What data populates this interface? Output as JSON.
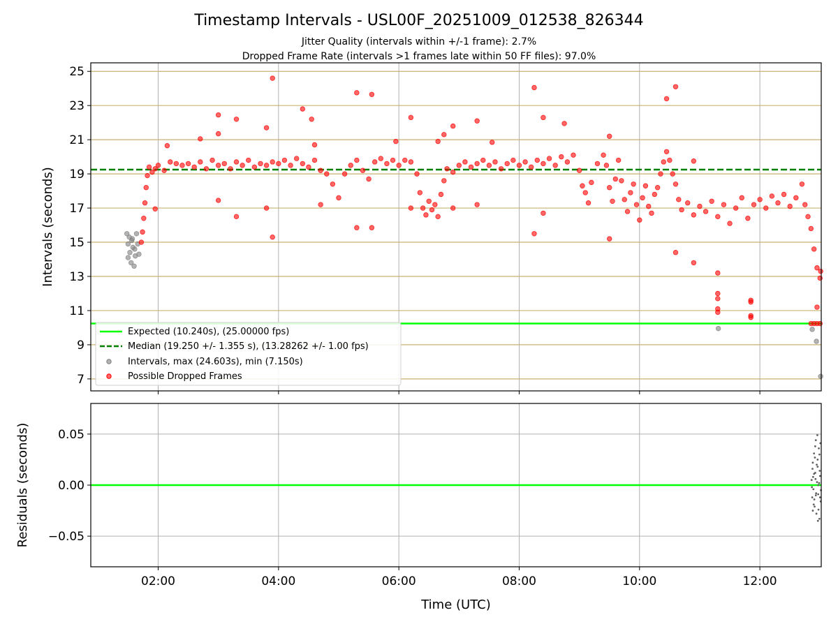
{
  "title": "Timestamp Intervals - USL00F_20251009_012538_826344",
  "subtitle_jitter": "Jitter Quality (intervals within +/-1 frame): 2.7%",
  "subtitle_dropped": "Dropped Frame Rate (intervals >1 frames late within 50 FF files): 97.0%",
  "colors": {
    "expected": "#00ff00",
    "median": "#008000",
    "intervals": "#808080",
    "dropped": "#ff0000",
    "hgrid": "#c8b070",
    "vgrid": "#b0b0b0"
  },
  "legend": {
    "expected": "Expected (10.240s), (25.00000 fps)",
    "median": "Median (19.250 +/- 1.355 s), (13.28262 +/- 1.00 fps)",
    "intervals": "Intervals, max (24.603s), min (7.150s)",
    "dropped": "Possible Dropped Frames"
  },
  "chart_data": [
    {
      "type": "scatter",
      "panel": "top",
      "ylabel": "Intervals (seconds)",
      "xlabel": "",
      "x_unit": "hours UTC",
      "xlim": [
        0.88,
        13.02
      ],
      "ylim": [
        6.3,
        25.5
      ],
      "yticks": [
        7,
        9,
        11,
        13,
        15,
        17,
        19,
        21,
        23,
        25
      ],
      "ytick_labels": [
        "7",
        "9",
        "11",
        "13",
        "15",
        "17",
        "19",
        "21",
        "23",
        "25"
      ],
      "expected_value": 10.24,
      "median_value": 19.25,
      "legend_position": "lower-left",
      "series": [
        {
          "name": "Intervals",
          "points": [
            [
              1.48,
              15.5
            ],
            [
              1.5,
              14.9
            ],
            [
              1.52,
              15.3
            ],
            [
              1.53,
              14.4
            ],
            [
              1.55,
              13.8
            ],
            [
              1.57,
              15.2
            ],
            [
              1.58,
              14.7
            ],
            [
              1.6,
              13.6
            ],
            [
              1.62,
              14.2
            ],
            [
              1.64,
              15.5
            ],
            [
              1.66,
              14.9
            ],
            [
              1.68,
              14.3
            ],
            [
              1.5,
              14.1
            ],
            [
              1.56,
              15.1
            ],
            [
              1.61,
              14.6
            ],
            [
              11.31,
              9.95
            ],
            [
              12.87,
              9.9
            ],
            [
              12.94,
              9.2
            ],
            [
              13.01,
              7.15
            ]
          ]
        },
        {
          "name": "Possible Dropped Frames",
          "points": [
            [
              1.72,
              15.0
            ],
            [
              1.74,
              15.6
            ],
            [
              1.76,
              16.4
            ],
            [
              1.78,
              17.3
            ],
            [
              1.8,
              18.2
            ],
            [
              1.82,
              18.9
            ],
            [
              1.85,
              19.4
            ],
            [
              1.9,
              19.1
            ],
            [
              1.95,
              19.3
            ],
            [
              2.0,
              19.5
            ],
            [
              2.1,
              19.2
            ],
            [
              2.2,
              19.7
            ],
            [
              2.3,
              19.6
            ],
            [
              2.4,
              19.5
            ],
            [
              2.5,
              19.6
            ],
            [
              2.6,
              19.4
            ],
            [
              2.7,
              19.7
            ],
            [
              2.8,
              19.3
            ],
            [
              2.9,
              19.8
            ],
            [
              3.0,
              19.5
            ],
            [
              3.1,
              19.6
            ],
            [
              3.2,
              19.3
            ],
            [
              3.3,
              19.7
            ],
            [
              3.4,
              19.5
            ],
            [
              3.5,
              19.8
            ],
            [
              3.6,
              19.4
            ],
            [
              3.7,
              19.6
            ],
            [
              3.8,
              19.5
            ],
            [
              3.9,
              19.7
            ],
            [
              4.0,
              19.6
            ],
            [
              4.1,
              19.8
            ],
            [
              4.2,
              19.5
            ],
            [
              4.3,
              19.9
            ],
            [
              4.4,
              19.6
            ],
            [
              4.5,
              19.4
            ],
            [
              4.6,
              19.8
            ],
            [
              4.7,
              19.2
            ],
            [
              4.8,
              19.0
            ],
            [
              4.9,
              18.4
            ],
            [
              5.0,
              17.6
            ],
            [
              5.1,
              19.0
            ],
            [
              5.2,
              19.5
            ],
            [
              5.3,
              19.8
            ],
            [
              5.4,
              19.2
            ],
            [
              5.5,
              18.7
            ],
            [
              5.6,
              19.7
            ],
            [
              5.7,
              19.9
            ],
            [
              5.8,
              19.6
            ],
            [
              5.9,
              19.8
            ],
            [
              6.0,
              19.5
            ],
            [
              6.1,
              19.8
            ],
            [
              6.2,
              19.7
            ],
            [
              6.3,
              19.0
            ],
            [
              6.35,
              17.9
            ],
            [
              6.4,
              17.0
            ],
            [
              6.45,
              16.6
            ],
            [
              6.5,
              17.4
            ],
            [
              6.55,
              16.9
            ],
            [
              6.6,
              17.2
            ],
            [
              6.65,
              16.5
            ],
            [
              6.7,
              17.8
            ],
            [
              6.75,
              18.6
            ],
            [
              6.8,
              19.3
            ],
            [
              6.9,
              19.1
            ],
            [
              7.0,
              19.5
            ],
            [
              7.1,
              19.7
            ],
            [
              7.2,
              19.4
            ],
            [
              7.3,
              19.6
            ],
            [
              7.4,
              19.8
            ],
            [
              7.5,
              19.5
            ],
            [
              7.6,
              19.7
            ],
            [
              7.7,
              19.3
            ],
            [
              7.8,
              19.6
            ],
            [
              7.9,
              19.8
            ],
            [
              8.0,
              19.5
            ],
            [
              8.1,
              19.7
            ],
            [
              8.2,
              19.4
            ],
            [
              8.3,
              19.8
            ],
            [
              8.4,
              19.6
            ],
            [
              8.5,
              19.9
            ],
            [
              8.6,
              19.5
            ],
            [
              8.7,
              20.0
            ],
            [
              8.8,
              19.7
            ],
            [
              8.9,
              20.1
            ],
            [
              9.0,
              19.2
            ],
            [
              9.05,
              18.3
            ],
            [
              9.1,
              17.9
            ],
            [
              9.15,
              17.3
            ],
            [
              9.2,
              18.5
            ],
            [
              9.3,
              19.6
            ],
            [
              9.4,
              20.1
            ],
            [
              9.45,
              19.5
            ],
            [
              9.5,
              18.2
            ],
            [
              9.55,
              17.4
            ],
            [
              9.6,
              18.7
            ],
            [
              9.65,
              19.8
            ],
            [
              9.7,
              18.6
            ],
            [
              9.75,
              17.5
            ],
            [
              9.8,
              16.8
            ],
            [
              9.85,
              17.9
            ],
            [
              9.9,
              18.4
            ],
            [
              9.95,
              17.2
            ],
            [
              10.0,
              16.3
            ],
            [
              10.05,
              17.6
            ],
            [
              10.1,
              18.3
            ],
            [
              10.15,
              17.1
            ],
            [
              10.2,
              16.7
            ],
            [
              10.25,
              17.8
            ],
            [
              10.3,
              18.2
            ],
            [
              10.35,
              19.0
            ],
            [
              10.4,
              19.7
            ],
            [
              10.45,
              20.3
            ],
            [
              10.5,
              19.8
            ],
            [
              10.55,
              19.0
            ],
            [
              10.6,
              18.4
            ],
            [
              10.65,
              17.5
            ],
            [
              10.7,
              16.9
            ],
            [
              10.8,
              17.3
            ],
            [
              10.9,
              16.6
            ],
            [
              11.0,
              17.1
            ],
            [
              11.1,
              16.8
            ],
            [
              11.2,
              17.4
            ],
            [
              11.3,
              16.5
            ],
            [
              11.4,
              17.2
            ],
            [
              11.5,
              16.1
            ],
            [
              11.6,
              17.0
            ],
            [
              11.7,
              17.6
            ],
            [
              11.8,
              16.4
            ],
            [
              11.9,
              17.2
            ],
            [
              12.0,
              17.5
            ],
            [
              12.1,
              17.0
            ],
            [
              12.2,
              17.7
            ],
            [
              12.3,
              17.3
            ],
            [
              12.4,
              17.8
            ],
            [
              12.5,
              17.1
            ],
            [
              12.6,
              17.6
            ],
            [
              12.7,
              18.4
            ],
            [
              12.75,
              17.2
            ],
            [
              12.8,
              16.5
            ],
            [
              12.85,
              15.8
            ],
            [
              12.9,
              14.6
            ],
            [
              12.95,
              13.5
            ],
            [
              1.95,
              16.95
            ],
            [
              2.15,
              20.65
            ],
            [
              2.7,
              21.05
            ],
            [
              3.0,
              22.45
            ],
            [
              3.0,
              21.35
            ],
            [
              3.0,
              17.45
            ],
            [
              3.3,
              22.2
            ],
            [
              3.3,
              16.5
            ],
            [
              3.8,
              21.7
            ],
            [
              3.8,
              17.0
            ],
            [
              3.9,
              24.6
            ],
            [
              3.9,
              15.3
            ],
            [
              4.4,
              22.8
            ],
            [
              4.55,
              22.2
            ],
            [
              4.6,
              20.7
            ],
            [
              4.7,
              17.2
            ],
            [
              5.3,
              23.75
            ],
            [
              5.3,
              15.85
            ],
            [
              5.55,
              23.65
            ],
            [
              5.55,
              15.85
            ],
            [
              5.95,
              20.9
            ],
            [
              6.2,
              22.3
            ],
            [
              6.2,
              17.0
            ],
            [
              6.65,
              20.9
            ],
            [
              6.75,
              21.3
            ],
            [
              6.9,
              21.8
            ],
            [
              6.9,
              17.0
            ],
            [
              7.3,
              22.1
            ],
            [
              7.3,
              17.2
            ],
            [
              7.55,
              20.85
            ],
            [
              8.25,
              24.05
            ],
            [
              8.25,
              15.5
            ],
            [
              8.4,
              22.3
            ],
            [
              8.4,
              16.7
            ],
            [
              8.75,
              21.95
            ],
            [
              9.5,
              21.2
            ],
            [
              9.5,
              15.2
            ],
            [
              10.45,
              23.4
            ],
            [
              10.6,
              24.1
            ],
            [
              10.6,
              14.4
            ],
            [
              10.9,
              19.75
            ],
            [
              10.9,
              13.8
            ],
            [
              11.3,
              13.2
            ],
            [
              11.3,
              12.0
            ],
            [
              11.3,
              11.7
            ],
            [
              11.3,
              11.1
            ],
            [
              11.3,
              10.9
            ],
            [
              11.85,
              11.6
            ],
            [
              11.85,
              11.5
            ],
            [
              11.85,
              10.7
            ],
            [
              11.85,
              10.6
            ],
            [
              12.85,
              10.24
            ],
            [
              12.9,
              10.24
            ],
            [
              12.95,
              10.24
            ],
            [
              13.0,
              10.24
            ],
            [
              13.01,
              13.3
            ],
            [
              13.0,
              12.9
            ],
            [
              12.95,
              11.2
            ]
          ]
        }
      ]
    },
    {
      "type": "scatter",
      "panel": "bottom",
      "xlabel": "Time (UTC)",
      "ylabel": "Residuals (seconds)",
      "xlim": [
        0.88,
        13.02
      ],
      "ylim": [
        -0.08,
        0.08
      ],
      "yticks": [
        -0.05,
        0.0,
        0.05
      ],
      "ytick_labels": [
        "−0.05",
        "0.00",
        "0.05"
      ],
      "xticks": [
        2,
        4,
        6,
        8,
        10,
        12
      ],
      "xtick_labels": [
        "02:00",
        "04:00",
        "06:00",
        "08:00",
        "10:00",
        "12:00"
      ],
      "zero_line": 0.0,
      "series": [
        {
          "name": "Residuals",
          "points": [
            [
              12.86,
              0.005
            ],
            [
              12.87,
              -0.012
            ],
            [
              12.88,
              0.022
            ],
            [
              12.89,
              -0.004
            ],
            [
              12.9,
              0.031
            ],
            [
              12.91,
              -0.021
            ],
            [
              12.92,
              0.012
            ],
            [
              12.93,
              0.044
            ],
            [
              12.94,
              -0.028
            ],
            [
              12.95,
              0.003
            ],
            [
              12.96,
              0.018
            ],
            [
              12.97,
              -0.009
            ],
            [
              12.98,
              0.036
            ],
            [
              12.99,
              -0.033
            ],
            [
              13.0,
              0.009
            ],
            [
              13.01,
              -0.016
            ],
            [
              12.875,
              0.016
            ],
            [
              12.895,
              -0.019
            ],
            [
              12.915,
              0.027
            ],
            [
              12.935,
              -0.008
            ],
            [
              12.955,
              0.049
            ],
            [
              12.975,
              -0.024
            ],
            [
              12.995,
              0.014
            ],
            [
              13.005,
              0.041
            ],
            [
              12.865,
              -0.002
            ],
            [
              12.885,
              0.008
            ],
            [
              12.905,
              -0.014
            ],
            [
              12.925,
              0.006
            ],
            [
              12.945,
              0.02
            ],
            [
              12.965,
              -0.035
            ],
            [
              12.985,
              0.002
            ],
            [
              13.015,
              -0.005
            ],
            [
              12.93,
              -0.01
            ],
            [
              12.96,
              0.025
            ],
            [
              12.99,
              0.03
            ],
            [
              12.88,
              -0.025
            ],
            [
              12.92,
              0.038
            ],
            [
              12.97,
              0.0
            ],
            [
              13.0,
              -0.012
            ],
            [
              12.9,
              0.011
            ]
          ]
        }
      ]
    }
  ]
}
